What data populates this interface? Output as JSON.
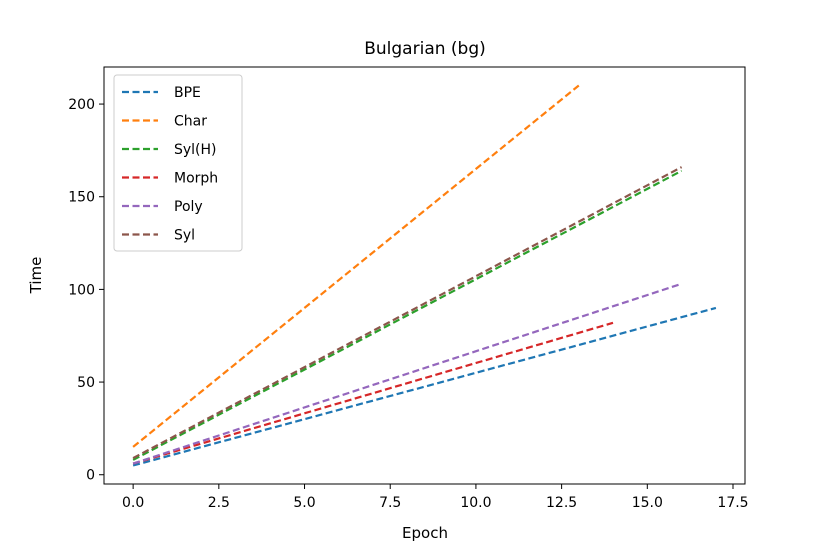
{
  "chart_data": {
    "type": "line",
    "title": "Bulgarian (bg)",
    "xlabel": "Epoch",
    "ylabel": "Time",
    "xlim": [
      -0.85,
      17.85
    ],
    "ylim": [
      -5,
      220
    ],
    "xticks": [
      0.0,
      2.5,
      5.0,
      7.5,
      10.0,
      12.5,
      15.0,
      17.5
    ],
    "xtick_labels": [
      "0.0",
      "2.5",
      "5.0",
      "7.5",
      "10.0",
      "12.5",
      "15.0",
      "17.5"
    ],
    "yticks": [
      0,
      50,
      100,
      150,
      200
    ],
    "ytick_labels": [
      "0",
      "50",
      "100",
      "150",
      "200"
    ],
    "grid": false,
    "legend_position": "top-left",
    "line_style": "dashed",
    "series": [
      {
        "name": "BPE",
        "color": "#1f77b4",
        "x": [
          0,
          17
        ],
        "y": [
          5,
          90
        ]
      },
      {
        "name": "Char",
        "color": "#ff7f0e",
        "x": [
          0,
          13
        ],
        "y": [
          15,
          210
        ]
      },
      {
        "name": "Syl(H)",
        "color": "#2ca02c",
        "x": [
          0,
          16
        ],
        "y": [
          8,
          164
        ]
      },
      {
        "name": "Morph",
        "color": "#d62728",
        "x": [
          0,
          14
        ],
        "y": [
          6,
          82
        ]
      },
      {
        "name": "Poly",
        "color": "#9467bd",
        "x": [
          0,
          16
        ],
        "y": [
          6,
          103
        ]
      },
      {
        "name": "Syl",
        "color": "#8c564b",
        "x": [
          0,
          16
        ],
        "y": [
          9,
          166
        ]
      }
    ]
  }
}
